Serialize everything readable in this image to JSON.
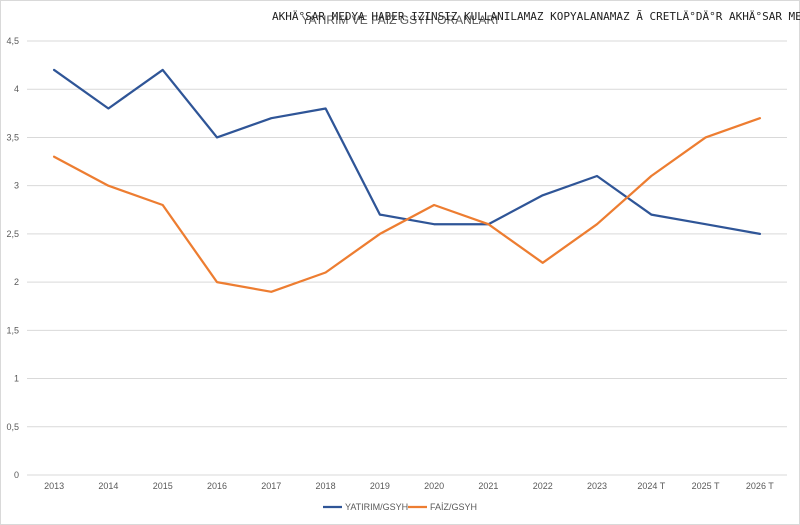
{
  "watermark": "AKHÄ°SAR MEDYA HABER IZINSIZ KULLANILAMAZ KOPYALANAMAZ  Ã CRETLÄ°DÄ°R   AKHÄ°SAR MEDYA",
  "chart_data": {
    "type": "line",
    "title": "YATIRIM VE FAİZ GSYH ORANLARI",
    "categories": [
      "2013",
      "2014",
      "2015",
      "2016",
      "2017",
      "2018",
      "2019",
      "2020",
      "2021",
      "2022",
      "2023",
      "2024 T",
      "2025 T",
      "2026 T"
    ],
    "series": [
      {
        "name": "YATIRIM/GSYH",
        "color": "#2f5597",
        "values": [
          4.2,
          3.8,
          4.2,
          3.5,
          3.7,
          3.8,
          2.7,
          2.6,
          2.6,
          2.9,
          3.1,
          2.7,
          2.6,
          2.5
        ]
      },
      {
        "name": "FAİZ/GSYH",
        "color": "#ed7d31",
        "values": [
          3.3,
          3.0,
          2.8,
          2.0,
          1.9,
          2.1,
          2.5,
          2.8,
          2.6,
          2.2,
          2.6,
          3.1,
          3.5,
          3.7
        ]
      }
    ],
    "yticks": [
      "0",
      "0,5",
      "1",
      "1,5",
      "2",
      "2,5",
      "3",
      "3,5",
      "4",
      "4,5"
    ],
    "ylim": [
      0,
      4.5
    ],
    "grid": true,
    "legend": "bottom"
  }
}
